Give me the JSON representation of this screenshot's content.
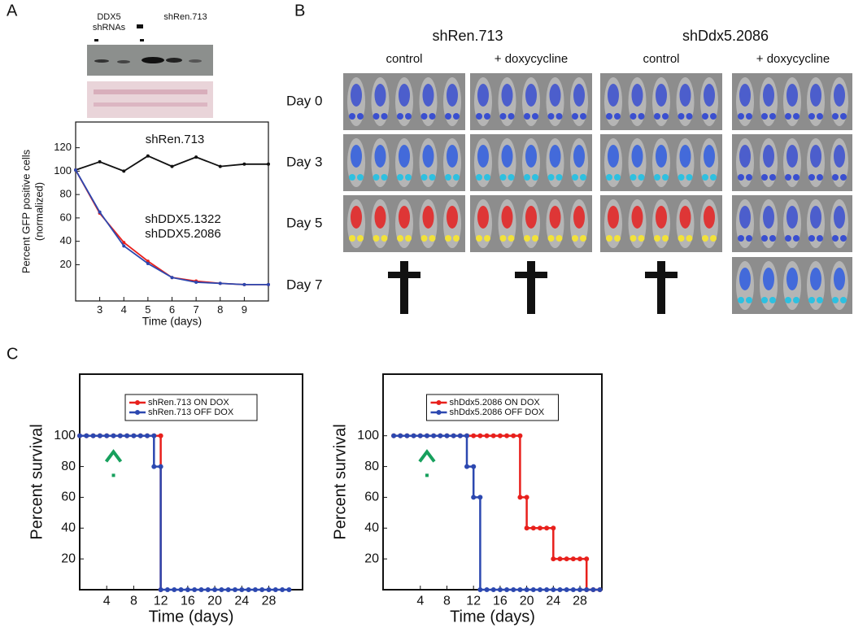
{
  "panel_labels": [
    "A",
    "B",
    "C"
  ],
  "blot": {
    "labels": [
      "DDX5",
      "shRNAs",
      "shRen.713"
    ]
  },
  "imaging": {
    "groups": [
      "shRen.713",
      "shDdx5.2086"
    ],
    "conditions": [
      "control",
      "+ doxycycline",
      "control",
      "+ doxycycline"
    ],
    "rows": [
      "Day 0",
      "Day 3",
      "Day 5",
      "Day 7"
    ]
  },
  "chart_data": [
    {
      "type": "line",
      "x_label": "Time (days)",
      "y_label": [
        "Percent GFP positive cells",
        "(normalized)"
      ],
      "x": [
        2,
        3,
        4,
        5,
        6,
        7,
        8,
        9,
        10
      ],
      "series": [
        {
          "name": "shRen.713",
          "color": "#111111",
          "values": [
            101,
            108,
            100,
            113,
            104,
            112,
            104,
            106,
            106
          ]
        },
        {
          "name": "shDDX5.1322",
          "color": "#e8201c",
          "values": [
            101,
            64,
            39,
            23,
            9,
            6,
            4,
            3,
            3
          ]
        },
        {
          "name": "shDDX5.2086",
          "color": "#2c48b0",
          "values": [
            101,
            65,
            36,
            21,
            9,
            5,
            4,
            3,
            3
          ]
        }
      ],
      "xlim": [
        2,
        10
      ],
      "xticks": [
        3,
        4,
        5,
        6,
        7,
        8,
        9
      ],
      "ylim": [
        -11,
        142
      ],
      "yticks": [
        20,
        40,
        60,
        80,
        100,
        120
      ],
      "legend": "inline"
    },
    {
      "type": "line",
      "x_label": "Time (days)",
      "y_label": "Percent survival",
      "series": [
        {
          "name": "shRen.713 ON DOX",
          "color": "#e8201c",
          "x": [
            0,
            1,
            2,
            3,
            4,
            5,
            6,
            7,
            8,
            9,
            10,
            11,
            12,
            12
          ],
          "values": [
            100,
            100,
            100,
            100,
            100,
            100,
            100,
            100,
            100,
            100,
            100,
            100,
            100,
            0
          ]
        },
        {
          "name": "shRen.713 OFF DOX",
          "color": "#2c48b0",
          "x": [
            0,
            1,
            2,
            3,
            4,
            5,
            6,
            7,
            8,
            9,
            10,
            11,
            11,
            12,
            12,
            13,
            14,
            15,
            16,
            17,
            18,
            19,
            20,
            21,
            22,
            23,
            24,
            25,
            26,
            27,
            28,
            29,
            30,
            31
          ],
          "values": [
            100,
            100,
            100,
            100,
            100,
            100,
            100,
            100,
            100,
            100,
            100,
            100,
            80,
            80,
            0,
            0,
            0,
            0,
            0,
            0,
            0,
            0,
            0,
            0,
            0,
            0,
            0,
            0,
            0,
            0,
            0,
            0,
            0,
            0
          ]
        }
      ],
      "xlim": [
        0,
        33
      ],
      "xticks": [
        4,
        8,
        12,
        16,
        20,
        24,
        28
      ],
      "ylim": [
        0,
        140
      ],
      "yticks": [
        20,
        40,
        60,
        80,
        100
      ],
      "legend": "upper center",
      "arrow_x": 5,
      "arrow_color": "#17a05d"
    },
    {
      "type": "line",
      "x_label": "Time (days)",
      "y_label": "Percent survival",
      "series": [
        {
          "name": "shDdx5.2086 ON DOX",
          "color": "#e8201c",
          "x": [
            0,
            1,
            2,
            3,
            4,
            5,
            6,
            7,
            8,
            9,
            10,
            11,
            12,
            13,
            14,
            15,
            16,
            17,
            18,
            19,
            19,
            20,
            20,
            21,
            22,
            23,
            24,
            24,
            25,
            26,
            27,
            28,
            29,
            29,
            30,
            31
          ],
          "values": [
            100,
            100,
            100,
            100,
            100,
            100,
            100,
            100,
            100,
            100,
            100,
            100,
            100,
            100,
            100,
            100,
            100,
            100,
            100,
            100,
            60,
            60,
            40,
            40,
            40,
            40,
            40,
            20,
            20,
            20,
            20,
            20,
            20,
            0,
            0,
            0
          ]
        },
        {
          "name": "shDdx5.2086 OFF DOX",
          "color": "#2c48b0",
          "x": [
            0,
            1,
            2,
            3,
            4,
            5,
            6,
            7,
            8,
            9,
            10,
            11,
            11,
            12,
            12,
            13,
            13,
            14,
            15,
            16,
            17,
            18,
            19,
            20,
            21,
            22,
            23,
            24,
            25,
            26,
            27,
            28,
            29,
            30,
            31
          ],
          "values": [
            100,
            100,
            100,
            100,
            100,
            100,
            100,
            100,
            100,
            100,
            100,
            100,
            80,
            80,
            60,
            60,
            0,
            0,
            0,
            0,
            0,
            0,
            0,
            0,
            0,
            0,
            0,
            0,
            0,
            0,
            0,
            0,
            0,
            0,
            0
          ]
        }
      ],
      "xlim": [
        -1.6,
        31.3
      ],
      "xticks": [
        4,
        8,
        12,
        16,
        20,
        24,
        28
      ],
      "ylim": [
        0,
        140
      ],
      "yticks": [
        20,
        40,
        60,
        80,
        100
      ],
      "legend": "upper center",
      "arrow_x": 5,
      "arrow_color": "#17a05d"
    }
  ]
}
